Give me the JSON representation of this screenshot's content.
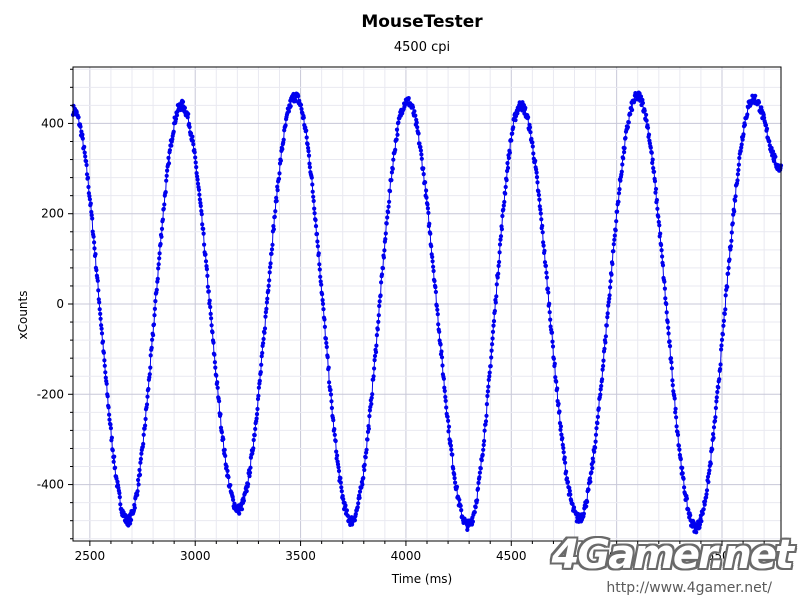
{
  "chart_data": {
    "type": "scatter",
    "title": "MouseTester",
    "subtitle": "4500 cpi",
    "xlabel": "Time (ms)",
    "ylabel": "xCounts",
    "xlim": [
      2420,
      5780
    ],
    "ylim": [
      -525,
      525
    ],
    "x_ticks": [
      2500,
      3000,
      3500,
      4000,
      4500,
      5000,
      5500
    ],
    "y_ticks": [
      -400,
      -200,
      0,
      200,
      400
    ],
    "x_tick_labels": [
      "2500",
      "3000",
      "3500",
      "4000",
      "4500",
      "5000",
      "5500"
    ],
    "y_tick_labels": [
      "-400",
      "-200",
      "0",
      "200",
      "400"
    ],
    "grid": true,
    "series": [
      {
        "color": "#0000ee",
        "style": "line-with-markers",
        "x_start": 2420,
        "x_end": 5780,
        "points_per_ms": 0.45,
        "x": [
          2420,
          2680,
          2935,
          3205,
          3475,
          3740,
          4005,
          4295,
          4545,
          4820,
          5100,
          5375,
          5650,
          5780
        ],
        "y": [
          430,
          -480,
          440,
          -455,
          460,
          -480,
          450,
          -490,
          440,
          -475,
          460,
          -495,
          455,
          300
        ]
      }
    ]
  },
  "watermark": {
    "logo": "4Gamer.net",
    "url": "http://www.4gamer.net/"
  }
}
